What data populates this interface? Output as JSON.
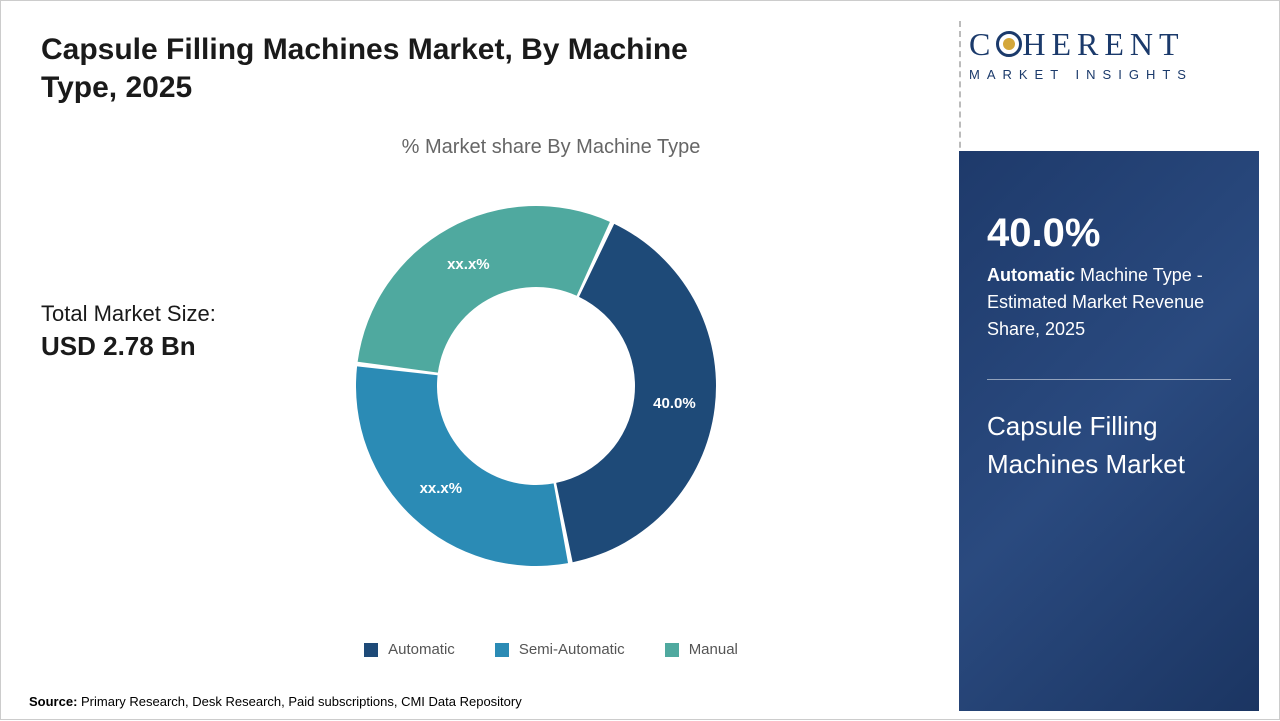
{
  "title": "Capsule Filling Machines Market, By Machine Type, 2025",
  "chart_subtitle": "% Market share By Machine Type",
  "market_size": {
    "label": "Total Market Size:",
    "value": "USD 2.78 Bn"
  },
  "logo": {
    "main_before": "C",
    "main_after": "HERENT",
    "sub": "MARKET INSIGHTS"
  },
  "highlight": {
    "percent": "40.0%",
    "line1_bold": "Automatic",
    "line1_rest": " Machine Type - Estimated Market Revenue Share, 2025",
    "market_name": "Capsule Filling Machines Market"
  },
  "chart": {
    "type": "donut",
    "inner_radius_ratio": 0.55,
    "gap_deg": 1.5,
    "background_color": "#ffffff",
    "segments": [
      {
        "name": "Automatic",
        "value": 40.0,
        "label": "40.0%",
        "color": "#1e4a78"
      },
      {
        "name": "Semi-Automatic",
        "value": 30.0,
        "label": "xx.x%",
        "color": "#2b8bb5"
      },
      {
        "name": "Manual",
        "value": 30.0,
        "label": "xx.x%",
        "color": "#4fa99f"
      }
    ],
    "start_angle_deg": -65
  },
  "legend": [
    {
      "label": "Automatic",
      "color": "#1e4a78"
    },
    {
      "label": "Semi-Automatic",
      "color": "#2b8bb5"
    },
    {
      "label": "Manual",
      "color": "#4fa99f"
    }
  ],
  "source": {
    "label": "Source: ",
    "text": "Primary Research, Desk Research, Paid subscriptions, CMI Data Repository"
  }
}
